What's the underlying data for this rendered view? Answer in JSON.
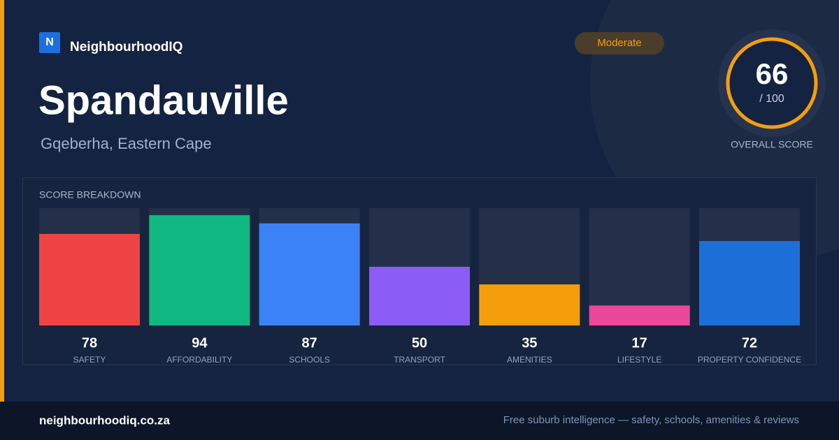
{
  "header": {
    "logo": "N",
    "brand": "NeighbourhoodIQ",
    "title": "Spandauville",
    "subtitle": "Gqeberha, Eastern Cape",
    "badge": "Moderate"
  },
  "score": {
    "value": 66,
    "max_label": "/ 100",
    "label": "OVERALL SCORE"
  },
  "chart_data": {
    "type": "bar",
    "title": "SCORE BREAKDOWN",
    "categories": [
      "SAFETY",
      "AFFORDABILITY",
      "SCHOOLS",
      "TRANSPORT",
      "AMENITIES",
      "LIFESTYLE",
      "PROPERTY CONFIDENCE"
    ],
    "values": [
      78,
      94,
      87,
      50,
      35,
      17,
      72
    ],
    "colors": [
      "#ef4444",
      "#10b981",
      "#3b82f6",
      "#8b5cf6",
      "#f59e0b",
      "#ec4899",
      "#1d6fd8"
    ],
    "ylim": [
      0,
      100
    ]
  },
  "footer": {
    "site": "neighbourhoodiq.co.za",
    "tagline": "Free suburb intelligence — safety, schools, amenities & reviews"
  }
}
